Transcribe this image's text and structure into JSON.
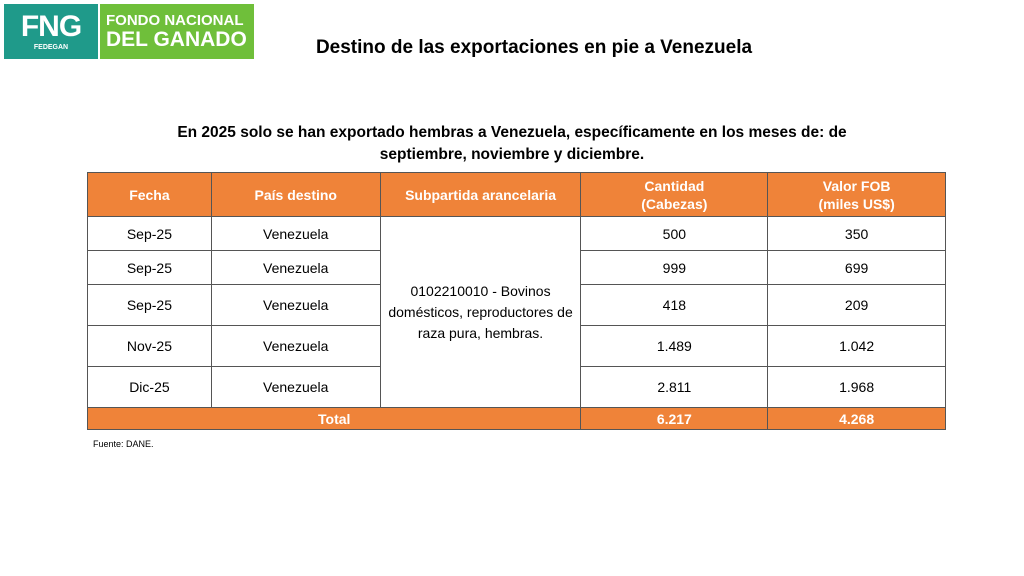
{
  "logo": {
    "mark": "FNG",
    "sub": "FEDEGAN",
    "line1": "FONDO NACIONAL",
    "line2": "DEL GANADO"
  },
  "title": "Destino de las exportaciones en pie a Venezuela",
  "subtitle": "En 2025 solo se han exportado hembras a Venezuela, específicamente en los meses de: de septiembre, noviembre y diciembre.",
  "table": {
    "headers": [
      "Fecha",
      "País destino",
      "Subpartida arancelaria",
      "Cantidad\n(Cabezas)",
      "Valor FOB\n(miles US$)"
    ],
    "subpartida": "0102210010 - Bovinos domésticos, reproductores de raza pura, hembras.",
    "rows": [
      {
        "fecha": "Sep-25",
        "pais": "Venezuela",
        "cantidad": "500",
        "valor": "350"
      },
      {
        "fecha": "Sep-25",
        "pais": "Venezuela",
        "cantidad": "999",
        "valor": "699"
      },
      {
        "fecha": "Sep-25",
        "pais": "Venezuela",
        "cantidad": "418",
        "valor": "209"
      },
      {
        "fecha": "Nov-25",
        "pais": "Venezuela",
        "cantidad": "1.489",
        "valor": "1.042"
      },
      {
        "fecha": "Dic-25",
        "pais": "Venezuela",
        "cantidad": "2.811",
        "valor": "1.968"
      }
    ],
    "total": {
      "label": "Total",
      "cantidad": "6.217",
      "valor": "4.268"
    }
  },
  "source": "Fuente: DANE.",
  "colors": {
    "header_bg": "#ef8339",
    "logo_teal": "#1f9a8a",
    "logo_green": "#6fbf3a"
  }
}
